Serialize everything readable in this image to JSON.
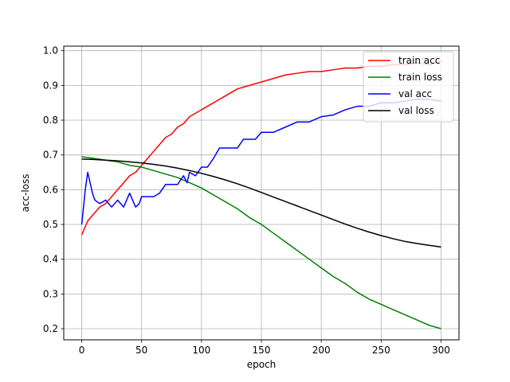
{
  "chart_data": {
    "type": "line",
    "title": "",
    "xlabel": "epoch",
    "ylabel": "acc-loss",
    "xlim": [
      -15,
      315
    ],
    "ylim": [
      0.168,
      1.013
    ],
    "xticks": [
      0,
      50,
      100,
      150,
      200,
      250,
      300
    ],
    "yticks": [
      0.2,
      0.3,
      0.4,
      0.5,
      0.6,
      0.7,
      0.8,
      0.9,
      1.0
    ],
    "ytick_labels": [
      "0.2",
      "0.3",
      "0.4",
      "0.5",
      "0.6",
      "0.7",
      "0.8",
      "0.9",
      "1.0"
    ],
    "grid": true,
    "legend_position": "top-right",
    "series": [
      {
        "name": "train acc",
        "color": "#ff0000",
        "x": [
          0,
          5,
          10,
          15,
          20,
          25,
          30,
          35,
          40,
          45,
          50,
          55,
          60,
          65,
          70,
          75,
          80,
          85,
          90,
          95,
          100,
          110,
          120,
          130,
          140,
          150,
          160,
          170,
          180,
          190,
          200,
          210,
          220,
          230,
          240,
          250,
          260,
          270,
          280,
          290,
          300
        ],
        "y": [
          0.47,
          0.51,
          0.53,
          0.55,
          0.56,
          0.58,
          0.6,
          0.62,
          0.64,
          0.65,
          0.67,
          0.69,
          0.71,
          0.73,
          0.75,
          0.76,
          0.78,
          0.79,
          0.81,
          0.82,
          0.83,
          0.85,
          0.87,
          0.89,
          0.9,
          0.91,
          0.92,
          0.93,
          0.935,
          0.94,
          0.94,
          0.945,
          0.95,
          0.95,
          0.955,
          0.955,
          0.96,
          0.96,
          0.965,
          0.96,
          0.97
        ]
      },
      {
        "name": "train loss",
        "color": "#008000",
        "x": [
          0,
          10,
          20,
          30,
          40,
          50,
          60,
          70,
          80,
          90,
          100,
          110,
          120,
          130,
          140,
          150,
          160,
          170,
          180,
          190,
          200,
          210,
          220,
          230,
          240,
          250,
          260,
          270,
          280,
          290,
          300
        ],
        "y": [
          0.695,
          0.69,
          0.685,
          0.68,
          0.67,
          0.665,
          0.655,
          0.645,
          0.635,
          0.62,
          0.605,
          0.585,
          0.565,
          0.545,
          0.52,
          0.5,
          0.475,
          0.45,
          0.425,
          0.4,
          0.375,
          0.35,
          0.33,
          0.305,
          0.285,
          0.27,
          0.255,
          0.24,
          0.225,
          0.21,
          0.2
        ]
      },
      {
        "name": "val acc",
        "color": "#0000ff",
        "x": [
          0,
          3,
          5,
          7,
          9,
          11,
          15,
          20,
          25,
          30,
          35,
          40,
          45,
          48,
          50,
          55,
          60,
          65,
          70,
          75,
          80,
          85,
          88,
          90,
          95,
          100,
          105,
          110,
          115,
          120,
          125,
          130,
          135,
          140,
          145,
          150,
          160,
          170,
          180,
          190,
          200,
          210,
          220,
          230,
          240,
          250,
          260,
          270,
          280,
          290,
          300
        ],
        "y": [
          0.5,
          0.6,
          0.65,
          0.62,
          0.59,
          0.57,
          0.56,
          0.57,
          0.55,
          0.57,
          0.55,
          0.59,
          0.55,
          0.56,
          0.58,
          0.58,
          0.58,
          0.59,
          0.615,
          0.615,
          0.615,
          0.64,
          0.62,
          0.65,
          0.64,
          0.665,
          0.665,
          0.69,
          0.72,
          0.72,
          0.72,
          0.72,
          0.745,
          0.745,
          0.745,
          0.765,
          0.765,
          0.78,
          0.795,
          0.795,
          0.81,
          0.815,
          0.83,
          0.84,
          0.84,
          0.85,
          0.85,
          0.855,
          0.86,
          0.86,
          0.855
        ]
      },
      {
        "name": "val loss",
        "color": "#000000",
        "x": [
          0,
          10,
          20,
          30,
          40,
          50,
          60,
          70,
          80,
          90,
          100,
          110,
          120,
          130,
          140,
          150,
          160,
          170,
          180,
          190,
          200,
          210,
          220,
          230,
          240,
          250,
          260,
          270,
          280,
          290,
          300
        ],
        "y": [
          0.688,
          0.687,
          0.685,
          0.683,
          0.68,
          0.677,
          0.673,
          0.668,
          0.662,
          0.655,
          0.647,
          0.638,
          0.628,
          0.617,
          0.605,
          0.592,
          0.579,
          0.566,
          0.553,
          0.54,
          0.527,
          0.514,
          0.501,
          0.489,
          0.478,
          0.468,
          0.459,
          0.451,
          0.445,
          0.44,
          0.435
        ]
      }
    ]
  }
}
